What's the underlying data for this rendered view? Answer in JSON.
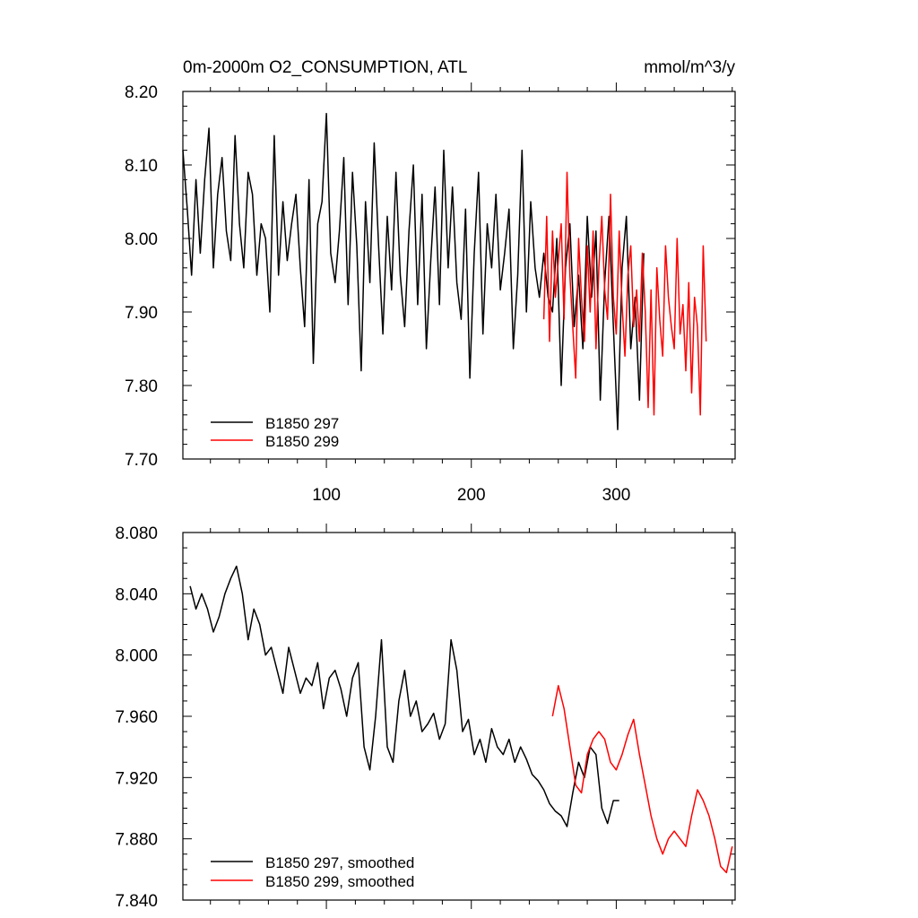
{
  "chart_data": [
    {
      "type": "line",
      "title": "0m-2000m O2_CONSUMPTION, ATL",
      "units": "mmol/m^3/y",
      "xlim": [
        1,
        382
      ],
      "ylim": [
        7.7,
        8.2
      ],
      "x_ticks": [
        100,
        200,
        300
      ],
      "x_tick_labels": [
        "100",
        "200",
        "300"
      ],
      "y_ticks": [
        7.7,
        7.8,
        7.9,
        8.0,
        8.1,
        8.2
      ],
      "y_tick_labels": [
        "7.70",
        "7.80",
        "7.90",
        "8.00",
        "8.10",
        "8.20"
      ],
      "legend": [
        "B1850 297",
        "B1850 299"
      ],
      "legend_position": "bottom-left",
      "series": [
        {
          "name": "B1850 297",
          "color": "#000000",
          "x_start": 1,
          "x_step": 3,
          "values": [
            8.12,
            8.04,
            7.95,
            8.08,
            7.98,
            8.08,
            8.15,
            7.96,
            8.06,
            8.11,
            8.01,
            7.97,
            8.14,
            8.02,
            7.96,
            8.09,
            8.06,
            7.95,
            8.02,
            8.0,
            7.9,
            8.14,
            7.95,
            8.05,
            7.97,
            8.02,
            8.06,
            7.96,
            7.88,
            8.08,
            7.83,
            8.02,
            8.05,
            8.17,
            7.98,
            7.94,
            8.01,
            8.11,
            7.91,
            8.09,
            7.99,
            7.82,
            8.05,
            7.94,
            8.13,
            7.99,
            7.87,
            8.03,
            7.93,
            8.09,
            7.95,
            7.88,
            8.01,
            8.1,
            7.91,
            8.06,
            7.85,
            7.97,
            8.07,
            7.91,
            8.12,
            7.96,
            8.07,
            7.94,
            7.89,
            8.04,
            7.81,
            7.98,
            8.09,
            7.87,
            8.02,
            7.96,
            8.06,
            7.93,
            7.98,
            8.04,
            7.85,
            7.95,
            8.12,
            7.9,
            8.05,
            7.96,
            7.92,
            7.98,
            7.92,
            7.9,
            8.0,
            7.8,
            7.96,
            8.02,
            7.88,
            7.95,
            7.85,
            8.03,
            7.92,
            8.01,
            7.78,
            7.94,
            8.03,
            7.88,
            7.74,
            7.96,
            8.03,
            7.85,
            7.92,
            7.78,
            7.98
          ]
        },
        {
          "name": "B1850 299",
          "color": "#ff0000",
          "x_start": 250,
          "x_step": 2,
          "values": [
            7.89,
            8.03,
            7.86,
            8.01,
            7.92,
            7.97,
            8.02,
            7.89,
            8.09,
            7.95,
            7.88,
            7.81,
            8.0,
            7.92,
            7.86,
            7.99,
            7.9,
            8.01,
            7.85,
            7.96,
            8.03,
            7.93,
            7.89,
            8.06,
            7.92,
            7.87,
            8.01,
            7.91,
            7.84,
            7.95,
            7.99,
            7.88,
            7.93,
            7.86,
            7.98,
            7.9,
            7.77,
            7.93,
            7.76,
            7.96,
            7.89,
            7.84,
            7.99,
            7.92,
            7.88,
            7.85,
            8.0,
            7.87,
            7.91,
            7.82,
            7.94,
            7.79,
            7.92,
            7.88,
            7.76,
            7.99,
            7.86
          ]
        }
      ]
    },
    {
      "type": "line",
      "xlim": [
        1,
        382
      ],
      "ylim": [
        7.84,
        8.08
      ],
      "x_ticks": [
        100,
        200,
        300
      ],
      "y_ticks": [
        7.84,
        7.88,
        7.92,
        7.96,
        8.0,
        8.04,
        8.08
      ],
      "y_tick_labels": [
        "7.840",
        "7.880",
        "7.920",
        "7.960",
        "8.000",
        "8.040",
        "8.080"
      ],
      "legend": [
        "B1850 297, smoothed",
        "B1850 299, smoothed"
      ],
      "legend_position": "bottom-left",
      "series": [
        {
          "name": "B1850 297, smoothed",
          "color": "#000000",
          "x": [
            6,
            10,
            14,
            18,
            22,
            26,
            30,
            34,
            38,
            42,
            46,
            50,
            54,
            58,
            62,
            66,
            70,
            74,
            78,
            82,
            86,
            90,
            94,
            98,
            102,
            106,
            110,
            114,
            118,
            122,
            126,
            130,
            134,
            138,
            142,
            146,
            150,
            154,
            158,
            162,
            166,
            170,
            174,
            178,
            182,
            186,
            190,
            194,
            198,
            202,
            206,
            210,
            214,
            218,
            222,
            226,
            230,
            234,
            238,
            242,
            246,
            250,
            254,
            258,
            262,
            266,
            270,
            274,
            278,
            282,
            286,
            290,
            294,
            298,
            302
          ],
          "values": [
            8.045,
            8.03,
            8.04,
            8.03,
            8.015,
            8.025,
            8.04,
            8.05,
            8.058,
            8.04,
            8.01,
            8.03,
            8.02,
            8.0,
            8.005,
            7.99,
            7.975,
            8.005,
            7.99,
            7.975,
            7.985,
            7.98,
            7.995,
            7.965,
            7.985,
            7.99,
            7.978,
            7.96,
            7.985,
            7.995,
            7.94,
            7.925,
            7.96,
            8.01,
            7.94,
            7.93,
            7.97,
            7.99,
            7.96,
            7.97,
            7.95,
            7.955,
            7.962,
            7.945,
            7.955,
            8.01,
            7.99,
            7.95,
            7.958,
            7.935,
            7.945,
            7.93,
            7.952,
            7.94,
            7.935,
            7.945,
            7.93,
            7.94,
            7.932,
            7.922,
            7.918,
            7.912,
            7.903,
            7.898,
            7.895,
            7.888,
            7.91,
            7.93,
            7.92,
            7.94,
            7.935,
            7.9,
            7.89,
            7.905,
            7.905
          ]
        },
        {
          "name": "B1850 299, smoothed",
          "color": "#ff0000",
          "x": [
            256,
            260,
            264,
            268,
            272,
            276,
            280,
            284,
            288,
            292,
            296,
            300,
            304,
            308,
            312,
            316,
            320,
            324,
            328,
            332,
            336,
            340,
            344,
            348,
            352,
            356,
            360,
            364,
            368,
            372,
            376,
            380
          ],
          "values": [
            7.96,
            7.98,
            7.965,
            7.94,
            7.915,
            7.91,
            7.935,
            7.945,
            7.95,
            7.945,
            7.93,
            7.925,
            7.935,
            7.948,
            7.958,
            7.935,
            7.915,
            7.895,
            7.88,
            7.87,
            7.88,
            7.885,
            7.88,
            7.875,
            7.895,
            7.912,
            7.905,
            7.895,
            7.88,
            7.862,
            7.858,
            7.875
          ]
        }
      ]
    }
  ]
}
